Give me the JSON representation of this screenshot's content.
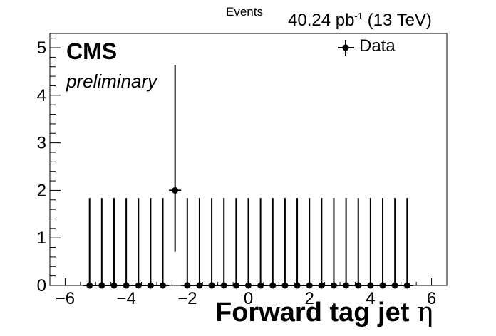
{
  "header": {
    "cms_label": "CMS",
    "preliminary_label": "preliminary",
    "lumi_value": "40.24 pb",
    "lumi_exponent": "-1",
    "energy": "(13 TeV)"
  },
  "chart_data": {
    "type": "scatter",
    "title": "",
    "ylabel": "Events",
    "xlabel": "Forward tag jet",
    "xlabel_symbol": "η",
    "xlim": [
      -6.5,
      6.5
    ],
    "ylim": [
      0,
      5.3
    ],
    "x_ticks": [
      -6,
      -4,
      -2,
      0,
      2,
      4,
      6
    ],
    "y_ticks": [
      0,
      1,
      2,
      3,
      4,
      5
    ],
    "bin_width": 0.4,
    "legend_position": "top-right",
    "series": [
      {
        "name": "Data",
        "x": [
          -5.2,
          -4.8,
          -4.4,
          -4.0,
          -3.6,
          -3.2,
          -2.8,
          -2.4,
          -2.0,
          -1.6,
          -1.2,
          -0.8,
          -0.4,
          0.0,
          0.4,
          0.8,
          1.2,
          1.6,
          2.0,
          2.4,
          2.8,
          3.2,
          3.6,
          4.0,
          4.4,
          4.8,
          5.2
        ],
        "y": [
          0,
          0,
          0,
          0,
          0,
          0,
          0,
          2,
          0,
          0,
          0,
          0,
          0,
          0,
          0,
          0,
          0,
          0,
          0,
          0,
          0,
          0,
          0,
          0,
          0,
          0,
          0
        ],
        "err_low": [
          0,
          0,
          0,
          0,
          0,
          0,
          0,
          1.29,
          0,
          0,
          0,
          0,
          0,
          0,
          0,
          0,
          0,
          0,
          0,
          0,
          0,
          0,
          0,
          0,
          0,
          0,
          0
        ],
        "err_high": [
          1.84,
          1.84,
          1.84,
          1.84,
          1.84,
          1.84,
          1.84,
          2.64,
          1.84,
          1.84,
          1.84,
          1.84,
          1.84,
          1.84,
          1.84,
          1.84,
          1.84,
          1.84,
          1.84,
          1.84,
          1.84,
          1.84,
          1.84,
          1.84,
          1.84,
          1.84,
          1.84
        ]
      }
    ]
  }
}
